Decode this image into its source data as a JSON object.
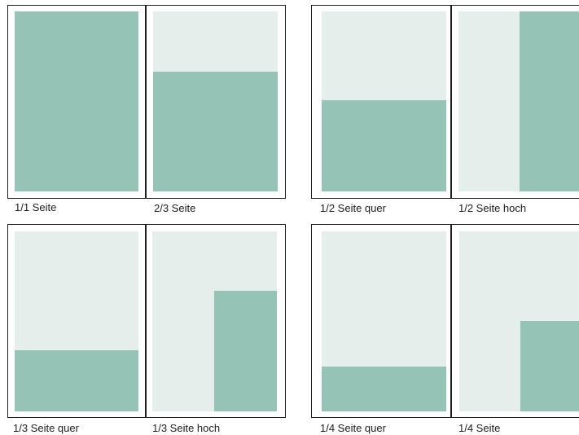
{
  "colors": {
    "page_background": "#e4efeb",
    "ad_area": "#95c4b7",
    "outline": "#1d1d1b"
  },
  "formats": [
    {
      "label": "1/1 Seite"
    },
    {
      "label": "2/3 Seite"
    },
    {
      "label": "1/2 Seite quer"
    },
    {
      "label": "1/2 Seite hoch"
    },
    {
      "label": "1/3 Seite quer"
    },
    {
      "label": "1/3 Seite hoch"
    },
    {
      "label": "1/4 Seite quer"
    },
    {
      "label": "1/4 Seite"
    }
  ]
}
